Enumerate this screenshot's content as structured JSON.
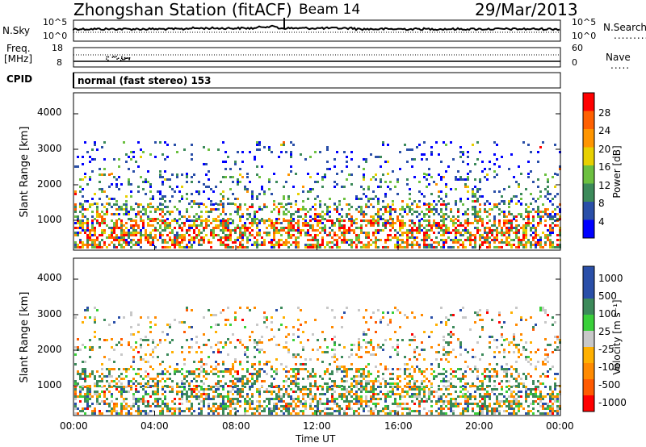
{
  "header": {
    "title": "Zhongshan Station (fitACF)",
    "beam": "Beam 14",
    "date": "29/Mar/2013"
  },
  "noise_panel": {
    "left_label": "N.Sky",
    "left_ticks": [
      "10^5",
      "10^0"
    ],
    "right_label": "N.Search",
    "right_ticks": [
      "10^5",
      "10^0"
    ]
  },
  "freq_panel": {
    "left_label_1": "Freq.",
    "left_label_2": "[MHz]",
    "left_ticks": [
      "18",
      "8"
    ],
    "right_label": "Nave",
    "right_ticks": [
      "60",
      "0"
    ]
  },
  "cpid_panel": {
    "label": "CPID",
    "mode_text": "normal (fast stereo) 153"
  },
  "colors": {
    "power": [
      "#0000ff",
      "#2a4fa8",
      "#3c8a5a",
      "#6cc040",
      "#e8d000",
      "#ff9500",
      "#ff6000",
      "#ff0000"
    ],
    "velocity": [
      "#ff0000",
      "#ff5a00",
      "#ff8a00",
      "#ffb000",
      "#c8c8c8",
      "#3ad03a",
      "#3c8a5a",
      "#2a4fa8",
      "#2a4fa8"
    ]
  },
  "chart_data": [
    {
      "type": "heatmap",
      "ylabel": "Slant Range [km]",
      "yticks": [
        "1000",
        "2000",
        "3000",
        "4000"
      ],
      "ylim": [
        200,
        4600
      ],
      "xlim": [
        "00:00",
        "24:00"
      ],
      "colorbar_label": "Power [dB]",
      "colorbar_ticks": [
        "4",
        "8",
        "12",
        "16",
        "20",
        "24",
        "28"
      ],
      "colorbar_range": [
        0,
        32
      ]
    },
    {
      "type": "heatmap",
      "ylabel": "Slant Range [km]",
      "yticks": [
        "1000",
        "2000",
        "3000",
        "4000"
      ],
      "ylim": [
        200,
        4600
      ],
      "xlim": [
        "00:00",
        "24:00"
      ],
      "xlabel": "Time UT",
      "xticks": [
        "00:00",
        "04:00",
        "08:00",
        "12:00",
        "16:00",
        "20:00",
        "00:00"
      ],
      "colorbar_label": "Velocity [m s⁻¹]",
      "colorbar_ticks": [
        "1000",
        "500",
        "100",
        "25",
        "-25",
        "-100",
        "-500",
        "-1000"
      ]
    }
  ]
}
